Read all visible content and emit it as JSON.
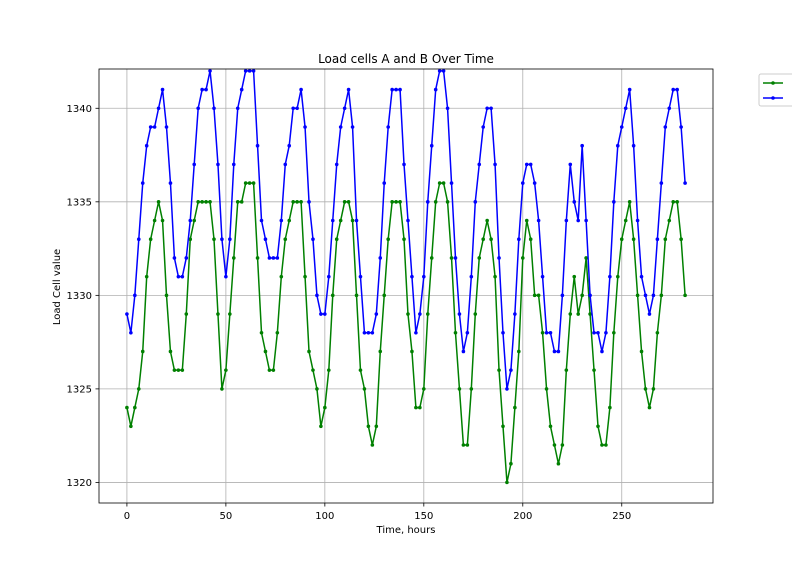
{
  "chart_data": {
    "type": "line",
    "title": "Load cells A and B Over Time",
    "xlabel": "Time, hours",
    "ylabel": "Load Cell value",
    "xlim": [
      -14.1,
      296.1
    ],
    "ylim": [
      1318.9,
      1342.1
    ],
    "xticks": [
      0,
      50,
      100,
      150,
      200,
      250
    ],
    "yticks": [
      1320,
      1325,
      1330,
      1335,
      1340
    ],
    "grid": true,
    "legend_position": "outside-right",
    "series": [
      {
        "color": "#008000",
        "marker": "dot",
        "points": [
          [
            0,
            1324
          ],
          [
            2,
            1323
          ],
          [
            4,
            1324
          ],
          [
            6,
            1325
          ],
          [
            8,
            1327
          ],
          [
            10,
            1331
          ],
          [
            12,
            1333
          ],
          [
            14,
            1334
          ],
          [
            16,
            1335
          ],
          [
            18,
            1334
          ],
          [
            20,
            1330
          ],
          [
            22,
            1327
          ],
          [
            24,
            1326
          ],
          [
            26,
            1326
          ],
          [
            28,
            1326
          ],
          [
            30,
            1329
          ],
          [
            32,
            1333
          ],
          [
            34,
            1334
          ],
          [
            36,
            1335
          ],
          [
            38,
            1335
          ],
          [
            40,
            1335
          ],
          [
            42,
            1335
          ],
          [
            44,
            1333
          ],
          [
            46,
            1329
          ],
          [
            48,
            1325
          ],
          [
            50,
            1326
          ],
          [
            52,
            1329
          ],
          [
            54,
            1332
          ],
          [
            56,
            1335
          ],
          [
            58,
            1335
          ],
          [
            60,
            1336
          ],
          [
            62,
            1336
          ],
          [
            64,
            1336
          ],
          [
            66,
            1332
          ],
          [
            68,
            1328
          ],
          [
            70,
            1327
          ],
          [
            72,
            1326
          ],
          [
            74,
            1326
          ],
          [
            76,
            1328
          ],
          [
            78,
            1331
          ],
          [
            80,
            1333
          ],
          [
            82,
            1334
          ],
          [
            84,
            1335
          ],
          [
            86,
            1335
          ],
          [
            88,
            1335
          ],
          [
            90,
            1331
          ],
          [
            92,
            1327
          ],
          [
            94,
            1326
          ],
          [
            96,
            1325
          ],
          [
            98,
            1323
          ],
          [
            100,
            1324
          ],
          [
            102,
            1326
          ],
          [
            104,
            1330
          ],
          [
            106,
            1333
          ],
          [
            108,
            1334
          ],
          [
            110,
            1335
          ],
          [
            112,
            1335
          ],
          [
            114,
            1334
          ],
          [
            116,
            1330
          ],
          [
            118,
            1326
          ],
          [
            120,
            1325
          ],
          [
            122,
            1323
          ],
          [
            124,
            1322
          ],
          [
            126,
            1323
          ],
          [
            128,
            1327
          ],
          [
            130,
            1330
          ],
          [
            132,
            1333
          ],
          [
            134,
            1335
          ],
          [
            136,
            1335
          ],
          [
            138,
            1335
          ],
          [
            140,
            1333
          ],
          [
            142,
            1329
          ],
          [
            144,
            1327
          ],
          [
            146,
            1324
          ],
          [
            148,
            1324
          ],
          [
            150,
            1325
          ],
          [
            152,
            1329
          ],
          [
            154,
            1332
          ],
          [
            156,
            1335
          ],
          [
            158,
            1336
          ],
          [
            160,
            1336
          ],
          [
            162,
            1335
          ],
          [
            164,
            1332
          ],
          [
            166,
            1328
          ],
          [
            168,
            1325
          ],
          [
            170,
            1322
          ],
          [
            172,
            1322
          ],
          [
            174,
            1325
          ],
          [
            176,
            1329
          ],
          [
            178,
            1332
          ],
          [
            180,
            1333
          ],
          [
            182,
            1334
          ],
          [
            184,
            1333
          ],
          [
            186,
            1331
          ],
          [
            188,
            1326
          ],
          [
            190,
            1323
          ],
          [
            192,
            1320
          ],
          [
            194,
            1321
          ],
          [
            196,
            1324
          ],
          [
            198,
            1327
          ],
          [
            200,
            1332
          ],
          [
            202,
            1334
          ],
          [
            204,
            1333
          ],
          [
            206,
            1330
          ],
          [
            208,
            1330
          ],
          [
            210,
            1328
          ],
          [
            212,
            1325
          ],
          [
            214,
            1323
          ],
          [
            216,
            1322
          ],
          [
            218,
            1321
          ],
          [
            220,
            1322
          ],
          [
            222,
            1326
          ],
          [
            224,
            1329
          ],
          [
            226,
            1331
          ],
          [
            228,
            1329
          ],
          [
            230,
            1330
          ],
          [
            232,
            1332
          ],
          [
            234,
            1329
          ],
          [
            236,
            1326
          ],
          [
            238,
            1323
          ],
          [
            240,
            1322
          ],
          [
            242,
            1322
          ],
          [
            244,
            1324
          ],
          [
            246,
            1328
          ],
          [
            248,
            1331
          ],
          [
            250,
            1333
          ],
          [
            252,
            1334
          ],
          [
            254,
            1335
          ],
          [
            256,
            1333
          ],
          [
            258,
            1330
          ],
          [
            260,
            1327
          ],
          [
            262,
            1325
          ],
          [
            264,
            1324
          ],
          [
            266,
            1325
          ],
          [
            268,
            1328
          ],
          [
            270,
            1330
          ],
          [
            272,
            1333
          ],
          [
            274,
            1334
          ],
          [
            276,
            1335
          ],
          [
            278,
            1335
          ],
          [
            280,
            1333
          ],
          [
            282,
            1330
          ]
        ]
      },
      {
        "color": "#0000ff",
        "marker": "dot",
        "points": [
          [
            0,
            1329
          ],
          [
            2,
            1328
          ],
          [
            4,
            1330
          ],
          [
            6,
            1333
          ],
          [
            8,
            1336
          ],
          [
            10,
            1338
          ],
          [
            12,
            1339
          ],
          [
            14,
            1339
          ],
          [
            16,
            1340
          ],
          [
            18,
            1341
          ],
          [
            20,
            1339
          ],
          [
            22,
            1336
          ],
          [
            24,
            1332
          ],
          [
            26,
            1331
          ],
          [
            28,
            1331
          ],
          [
            30,
            1332
          ],
          [
            32,
            1334
          ],
          [
            34,
            1337
          ],
          [
            36,
            1340
          ],
          [
            38,
            1341
          ],
          [
            40,
            1341
          ],
          [
            42,
            1342
          ],
          [
            44,
            1340
          ],
          [
            46,
            1337
          ],
          [
            48,
            1333
          ],
          [
            50,
            1331
          ],
          [
            52,
            1333
          ],
          [
            54,
            1337
          ],
          [
            56,
            1340
          ],
          [
            58,
            1341
          ],
          [
            60,
            1342
          ],
          [
            62,
            1342
          ],
          [
            64,
            1342
          ],
          [
            66,
            1338
          ],
          [
            68,
            1334
          ],
          [
            70,
            1333
          ],
          [
            72,
            1332
          ],
          [
            74,
            1332
          ],
          [
            76,
            1332
          ],
          [
            78,
            1334
          ],
          [
            80,
            1337
          ],
          [
            82,
            1338
          ],
          [
            84,
            1340
          ],
          [
            86,
            1340
          ],
          [
            88,
            1341
          ],
          [
            90,
            1339
          ],
          [
            92,
            1335
          ],
          [
            94,
            1333
          ],
          [
            96,
            1330
          ],
          [
            98,
            1329
          ],
          [
            100,
            1329
          ],
          [
            102,
            1331
          ],
          [
            104,
            1334
          ],
          [
            106,
            1337
          ],
          [
            108,
            1339
          ],
          [
            110,
            1340
          ],
          [
            112,
            1341
          ],
          [
            114,
            1339
          ],
          [
            116,
            1334
          ],
          [
            118,
            1331
          ],
          [
            120,
            1328
          ],
          [
            122,
            1328
          ],
          [
            124,
            1328
          ],
          [
            126,
            1329
          ],
          [
            128,
            1332
          ],
          [
            130,
            1336
          ],
          [
            132,
            1339
          ],
          [
            134,
            1341
          ],
          [
            136,
            1341
          ],
          [
            138,
            1341
          ],
          [
            140,
            1337
          ],
          [
            142,
            1334
          ],
          [
            144,
            1331
          ],
          [
            146,
            1328
          ],
          [
            148,
            1329
          ],
          [
            150,
            1331
          ],
          [
            152,
            1335
          ],
          [
            154,
            1338
          ],
          [
            156,
            1341
          ],
          [
            158,
            1342
          ],
          [
            160,
            1342
          ],
          [
            162,
            1340
          ],
          [
            164,
            1336
          ],
          [
            166,
            1332
          ],
          [
            168,
            1329
          ],
          [
            170,
            1327
          ],
          [
            172,
            1328
          ],
          [
            174,
            1331
          ],
          [
            176,
            1335
          ],
          [
            178,
            1337
          ],
          [
            180,
            1339
          ],
          [
            182,
            1340
          ],
          [
            184,
            1340
          ],
          [
            186,
            1337
          ],
          [
            188,
            1332
          ],
          [
            190,
            1328
          ],
          [
            192,
            1325
          ],
          [
            194,
            1326
          ],
          [
            196,
            1329
          ],
          [
            198,
            1333
          ],
          [
            200,
            1336
          ],
          [
            202,
            1337
          ],
          [
            204,
            1337
          ],
          [
            206,
            1336
          ],
          [
            208,
            1334
          ],
          [
            210,
            1331
          ],
          [
            212,
            1328
          ],
          [
            214,
            1328
          ],
          [
            216,
            1327
          ],
          [
            218,
            1327
          ],
          [
            220,
            1330
          ],
          [
            222,
            1334
          ],
          [
            224,
            1337
          ],
          [
            226,
            1335
          ],
          [
            228,
            1334
          ],
          [
            230,
            1338
          ],
          [
            232,
            1334
          ],
          [
            234,
            1330
          ],
          [
            236,
            1328
          ],
          [
            238,
            1328
          ],
          [
            240,
            1327
          ],
          [
            242,
            1328
          ],
          [
            244,
            1331
          ],
          [
            246,
            1335
          ],
          [
            248,
            1338
          ],
          [
            250,
            1339
          ],
          [
            252,
            1340
          ],
          [
            254,
            1341
          ],
          [
            256,
            1338
          ],
          [
            258,
            1334
          ],
          [
            260,
            1331
          ],
          [
            262,
            1330
          ],
          [
            264,
            1329
          ],
          [
            266,
            1330
          ],
          [
            268,
            1333
          ],
          [
            270,
            1336
          ],
          [
            272,
            1339
          ],
          [
            274,
            1340
          ],
          [
            276,
            1341
          ],
          [
            278,
            1341
          ],
          [
            280,
            1339
          ],
          [
            282,
            1336
          ]
        ]
      }
    ]
  }
}
